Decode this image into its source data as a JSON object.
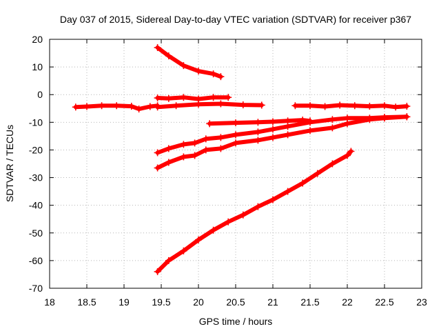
{
  "chart_data": {
    "type": "scatter",
    "title": "Day 037 of 2015, Sidereal Day-to-day VTEC variation (SDTVAR) for receiver p367",
    "xlabel": "GPS time / hours",
    "ylabel": "SDTVAR / TECUs",
    "xlim": [
      18,
      23
    ],
    "ylim": [
      -70,
      20
    ],
    "xticks": [
      "18",
      "18.5",
      "19",
      "19.5",
      "20",
      "20.5",
      "21",
      "21.5",
      "22",
      "22.5",
      "23"
    ],
    "yticks": [
      "20",
      "10",
      "0",
      "-10",
      "-20",
      "-30",
      "-40",
      "-50",
      "-60",
      "-70"
    ],
    "grid": true,
    "marker": "plus",
    "color": "#ff0000",
    "series": [
      {
        "x": [
          18.35,
          18.5,
          18.7,
          18.9,
          19.1,
          19.2,
          19.35,
          19.45
        ],
        "y": [
          -4.5,
          -4.3,
          -4.0,
          -4.0,
          -4.2,
          -5.2,
          -4.3,
          -4.0
        ]
      },
      {
        "x": [
          19.45,
          19.6,
          19.8,
          20.0,
          20.2,
          20.3
        ],
        "y": [
          17,
          14,
          10.5,
          8.5,
          7.5,
          6.5
        ]
      },
      {
        "x": [
          19.45,
          19.6,
          19.8,
          20.0,
          20.2,
          20.4
        ],
        "y": [
          -1.2,
          -1.4,
          -1.0,
          -1.6,
          -1.0,
          -1.0
        ]
      },
      {
        "x": [
          19.45,
          19.7,
          20.0,
          20.3,
          20.6,
          20.85
        ],
        "y": [
          -4.5,
          -4.0,
          -3.5,
          -3.3,
          -3.7,
          -3.8
        ]
      },
      {
        "x": [
          19.45,
          19.6,
          19.8,
          19.95,
          20.1,
          20.3,
          20.5,
          20.8,
          21.0,
          21.2,
          21.5,
          21.8,
          22.0,
          22.3,
          22.5,
          22.8
        ],
        "y": [
          -21,
          -19.5,
          -18,
          -17.5,
          -16,
          -15.5,
          -14.5,
          -13.5,
          -12.5,
          -11.5,
          -10,
          -9,
          -8.5,
          -8.5,
          -8.2,
          -8.0
        ]
      },
      {
        "x": [
          19.45,
          19.6,
          19.8,
          19.95,
          20.1,
          20.3,
          20.5,
          20.8,
          21.0,
          21.2,
          21.5,
          21.8,
          22.0,
          22.3,
          22.5,
          22.8
        ],
        "y": [
          -26.5,
          -24.5,
          -22.5,
          -22,
          -20,
          -19.5,
          -17.5,
          -16.5,
          -15.5,
          -14.5,
          -13,
          -12,
          -10.5,
          -9,
          -8.5,
          -8.0
        ]
      },
      {
        "x": [
          20.15,
          20.5,
          20.8,
          21.0,
          21.2,
          21.4,
          21.5
        ],
        "y": [
          -10.5,
          -10.2,
          -10.0,
          -9.8,
          -9.5,
          -9.2,
          -9.5
        ]
      },
      {
        "x": [
          21.3,
          21.5,
          21.7,
          21.9,
          22.1,
          22.3,
          22.5,
          22.65,
          22.8
        ],
        "y": [
          -4.0,
          -4.0,
          -4.3,
          -3.8,
          -4.0,
          -4.2,
          -4.0,
          -4.5,
          -4.2
        ]
      },
      {
        "x": [
          19.45,
          19.6,
          19.8,
          20.0,
          20.2,
          20.4,
          20.6,
          20.8,
          21.0,
          21.2,
          21.4,
          21.6,
          21.8,
          22.0,
          22.05
        ],
        "y": [
          -64,
          -60,
          -56.5,
          -52.5,
          -49,
          -46,
          -43.5,
          -40.5,
          -38,
          -35,
          -32,
          -28.5,
          -25,
          -22,
          -20.5
        ]
      }
    ]
  }
}
